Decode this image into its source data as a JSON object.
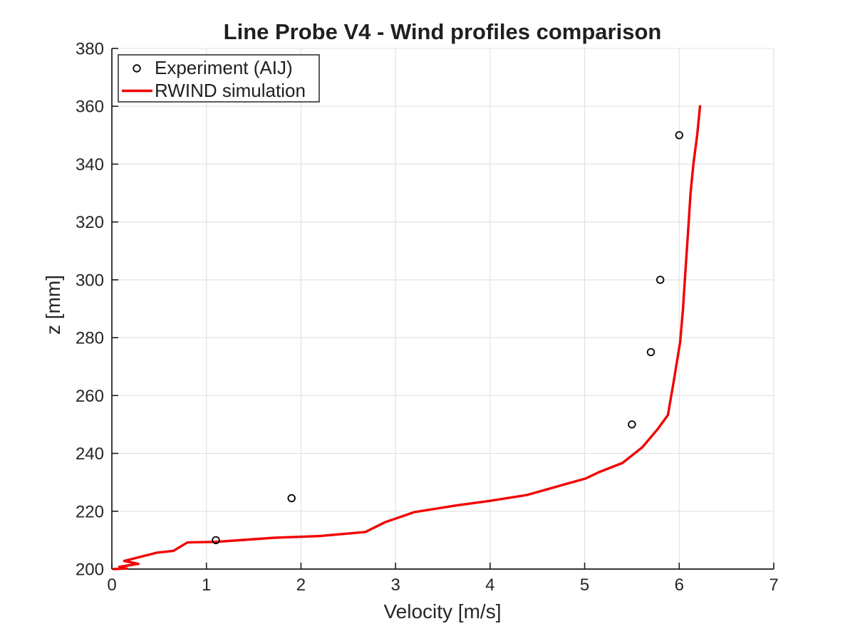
{
  "figure": {
    "background": "#ffffff"
  },
  "chart_data": {
    "type": "line",
    "title": "Line Probe V4 - Wind profiles comparison",
    "xlabel": "Velocity [m/s]",
    "ylabel": "z [mm]",
    "xlim": [
      0,
      7
    ],
    "ylim": [
      200,
      380
    ],
    "xticks": [
      0,
      1,
      2,
      3,
      4,
      5,
      6,
      7
    ],
    "yticks": [
      200,
      220,
      240,
      260,
      280,
      300,
      320,
      340,
      360,
      380
    ],
    "grid": true,
    "legend": {
      "position": "top-left",
      "entries": [
        "Experiment (AIJ)",
        "RWIND simulation"
      ]
    },
    "series": [
      {
        "name": "Experiment (AIJ)",
        "kind": "scatter",
        "marker": "open-circle",
        "color": "#000000",
        "points": [
          [
            1.1,
            210
          ],
          [
            1.9,
            224.5
          ],
          [
            5.5,
            250
          ],
          [
            5.7,
            275
          ],
          [
            5.8,
            300
          ],
          [
            6.0,
            350
          ]
        ]
      },
      {
        "name": "RWIND simulation",
        "kind": "line",
        "color": "#f20000",
        "points": [
          [
            0.02,
            200.0
          ],
          [
            0.16,
            200.2
          ],
          [
            0.08,
            200.8
          ],
          [
            0.28,
            201.8
          ],
          [
            0.13,
            202.8
          ],
          [
            0.3,
            204.2
          ],
          [
            0.48,
            205.7
          ],
          [
            0.65,
            206.3
          ],
          [
            0.8,
            209.2
          ],
          [
            1.1,
            209.4
          ],
          [
            1.4,
            210.1
          ],
          [
            1.71,
            210.8
          ],
          [
            2.19,
            211.4
          ],
          [
            2.68,
            212.8
          ],
          [
            2.89,
            216.2
          ],
          [
            3.2,
            219.7
          ],
          [
            3.64,
            222.0
          ],
          [
            4.0,
            223.6
          ],
          [
            4.39,
            225.6
          ],
          [
            4.79,
            229.3
          ],
          [
            5.01,
            231.3
          ],
          [
            5.15,
            233.5
          ],
          [
            5.4,
            236.7
          ],
          [
            5.61,
            242.1
          ],
          [
            5.77,
            248.3
          ],
          [
            5.88,
            253.2
          ],
          [
            5.94,
            264.5
          ],
          [
            6.01,
            278.5
          ],
          [
            6.04,
            290.0
          ],
          [
            6.06,
            300.0
          ],
          [
            6.08,
            310.0
          ],
          [
            6.1,
            320.0
          ],
          [
            6.12,
            330.0
          ],
          [
            6.15,
            340.0
          ],
          [
            6.19,
            350.0
          ],
          [
            6.22,
            360.0
          ]
        ]
      }
    ],
    "colors": {
      "axis": "#1a1a1a",
      "grid": "#e0e0e0",
      "text": "#262626"
    }
  }
}
